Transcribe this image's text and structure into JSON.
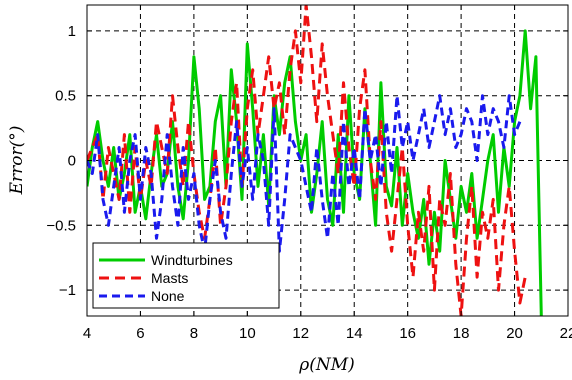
{
  "chart_data": {
    "type": "line",
    "title": "",
    "xlabel": "ρ(NM)",
    "ylabel": "Error(°)",
    "xlim": [
      4,
      22
    ],
    "ylim": [
      -1.2,
      1.2
    ],
    "xticks": [
      "4",
      "6",
      "8",
      "10",
      "12",
      "14",
      "16",
      "18",
      "20",
      "22"
    ],
    "yticks": [
      "1",
      "0.5",
      "0",
      "−0.5",
      "−1"
    ],
    "grid": true,
    "legend_position": "bottom-left",
    "series": [
      {
        "name": "Windturbines",
        "color": "#00cc00",
        "dash": "solid",
        "x": [
          4.0,
          4.2,
          4.4,
          4.6,
          4.8,
          5.0,
          5.2,
          5.4,
          5.6,
          5.8,
          6.0,
          6.2,
          6.4,
          6.6,
          6.8,
          7.0,
          7.2,
          7.4,
          7.6,
          7.8,
          8.0,
          8.2,
          8.4,
          8.6,
          8.8,
          9.0,
          9.2,
          9.4,
          9.6,
          9.8,
          10.0,
          10.2,
          10.4,
          10.6,
          10.8,
          11.0,
          11.2,
          11.4,
          11.6,
          11.8,
          12.0,
          12.2,
          12.4,
          12.6,
          12.8,
          13.0,
          13.2,
          13.4,
          13.6,
          13.8,
          14.0,
          14.2,
          14.4,
          14.6,
          14.8,
          15.0,
          15.2,
          15.4,
          15.6,
          15.8,
          16.0,
          16.2,
          16.4,
          16.6,
          16.8,
          17.0,
          17.2,
          17.4,
          17.6,
          17.8,
          18.0,
          18.2,
          18.4,
          18.6,
          18.8,
          19.0,
          19.2,
          19.4,
          19.6,
          19.8,
          20.0,
          20.2,
          20.4,
          20.6,
          20.8,
          21.0
        ],
        "y": [
          -0.2,
          0.1,
          0.3,
          0.0,
          -0.2,
          0.1,
          -0.3,
          -0.1,
          0.2,
          -0.4,
          -0.2,
          -0.45,
          -0.1,
          0.2,
          -0.2,
          -0.1,
          0.3,
          -0.2,
          -0.45,
          0.0,
          0.8,
          0.4,
          -0.3,
          -0.2,
          0.3,
          0.5,
          -0.2,
          0.7,
          0.3,
          -0.3,
          0.9,
          0.4,
          -0.2,
          0.2,
          -0.35,
          0.5,
          0.2,
          0.6,
          0.8,
          0.3,
          0.0,
          0.2,
          -0.4,
          -0.1,
          0.3,
          -0.3,
          -0.5,
          0.2,
          -0.4,
          0.5,
          -0.1,
          -0.3,
          0.4,
          0.0,
          -0.5,
          0.6,
          -0.2,
          -0.35,
          0.1,
          -0.5,
          -0.1,
          -0.4,
          -0.6,
          -0.3,
          -0.8,
          -0.4,
          -0.7,
          0.0,
          -0.3,
          -0.6,
          -0.2,
          -0.4,
          -0.1,
          -0.6,
          -0.3,
          0.0,
          0.2,
          -0.4,
          0.1,
          -0.2,
          0.3,
          0.5,
          1.0,
          0.4,
          0.8,
          -1.2
        ]
      },
      {
        "name": "Masts",
        "color": "#ee1111",
        "dash": "10,6",
        "x": [
          4.0,
          4.2,
          4.4,
          4.6,
          4.8,
          5.0,
          5.2,
          5.4,
          5.6,
          5.8,
          6.0,
          6.2,
          6.4,
          6.6,
          6.8,
          7.0,
          7.2,
          7.4,
          7.6,
          7.8,
          8.0,
          8.2,
          8.4,
          8.6,
          8.8,
          9.0,
          9.2,
          9.4,
          9.6,
          9.8,
          10.0,
          10.2,
          10.4,
          10.6,
          10.8,
          11.0,
          11.2,
          11.4,
          11.6,
          11.8,
          12.0,
          12.2,
          12.4,
          12.6,
          12.8,
          13.0,
          13.2,
          13.4,
          13.6,
          13.8,
          14.0,
          14.2,
          14.4,
          14.6,
          14.8,
          15.0,
          15.2,
          15.4,
          15.6,
          15.8,
          16.0,
          16.2,
          16.4,
          16.6,
          16.8,
          17.0,
          17.2,
          17.4,
          17.6,
          17.8,
          18.0,
          18.2,
          18.4,
          18.6,
          18.8,
          19.0,
          19.2,
          19.4,
          19.6,
          19.8,
          20.0,
          20.2,
          20.4
        ],
        "y": [
          0.0,
          0.1,
          0.2,
          -0.3,
          0.1,
          -0.1,
          -0.3,
          0.2,
          -0.4,
          0.1,
          -0.3,
          0.0,
          -0.2,
          0.3,
          0.1,
          -0.1,
          0.5,
          0.1,
          -0.2,
          0.3,
          -0.1,
          -0.4,
          -0.6,
          -0.3,
          0.1,
          -0.5,
          -0.2,
          0.3,
          0.6,
          -0.2,
          0.4,
          0.7,
          0.2,
          0.5,
          0.8,
          0.4,
          0.6,
          0.2,
          0.7,
          1.0,
          0.6,
          1.2,
          0.8,
          0.3,
          0.9,
          0.5,
          0.2,
          -0.1,
          0.6,
          0.1,
          -0.2,
          0.4,
          0.7,
          0.0,
          -0.3,
          0.3,
          -0.4,
          -0.7,
          -0.3,
          0.1,
          -0.5,
          -0.9,
          -0.4,
          -0.7,
          -0.2,
          -1.0,
          -0.3,
          -0.5,
          -0.1,
          -0.8,
          -1.2,
          -0.6,
          -0.2,
          -0.9,
          -0.4,
          -0.6,
          -0.3,
          -1.0,
          -0.5,
          -0.2,
          -0.7,
          -1.1,
          -0.9
        ]
      },
      {
        "name": "None",
        "color": "#1a1aee",
        "dash": "8,5",
        "x": [
          4.0,
          4.2,
          4.4,
          4.6,
          4.8,
          5.0,
          5.2,
          5.4,
          5.6,
          5.8,
          6.0,
          6.2,
          6.4,
          6.6,
          6.8,
          7.0,
          7.2,
          7.4,
          7.6,
          7.8,
          8.0,
          8.2,
          8.4,
          8.6,
          8.8,
          9.0,
          9.2,
          9.4,
          9.6,
          9.8,
          10.0,
          10.2,
          10.4,
          10.6,
          10.8,
          11.0,
          11.2,
          11.4,
          11.6,
          11.8,
          12.0,
          12.2,
          12.4,
          12.6,
          12.8,
          13.0,
          13.2,
          13.4,
          13.6,
          13.8,
          14.0,
          14.2,
          14.4,
          14.6,
          14.8,
          15.0,
          15.2,
          15.4,
          15.6,
          15.8,
          16.0,
          16.2,
          16.4,
          16.6,
          16.8,
          17.0,
          17.2,
          17.4,
          17.6,
          17.8,
          18.0,
          18.2,
          18.4,
          18.6,
          18.8,
          19.0,
          19.2,
          19.4,
          19.6,
          19.8,
          20.0,
          20.2
        ],
        "y": [
          0.0,
          -0.1,
          0.2,
          -0.3,
          -0.5,
          -0.2,
          0.1,
          -0.4,
          0.0,
          0.2,
          -0.3,
          0.1,
          -0.1,
          -0.6,
          -0.3,
          0.2,
          -0.2,
          -0.5,
          0.1,
          -0.3,
          -0.1,
          -0.5,
          -0.7,
          -0.3,
          0.0,
          -0.4,
          -0.6,
          -0.1,
          0.3,
          -0.2,
          0.1,
          -0.3,
          0.2,
          0.0,
          -0.5,
          0.4,
          -0.7,
          -0.3,
          0.2,
          0.1,
          0.0,
          -0.2,
          -0.4,
          0.1,
          -0.3,
          -0.6,
          -0.1,
          -0.5,
          0.3,
          -0.2,
          0.1,
          -0.3,
          0.4,
          0.0,
          0.2,
          -0.2,
          0.3,
          -0.1,
          0.5,
          0.1,
          0.3,
          0.0,
          0.2,
          0.4,
          0.1,
          0.3,
          0.5,
          0.2,
          0.4,
          0.1,
          0.2,
          0.4,
          0.3,
          0.0,
          0.5,
          0.2,
          0.4,
          0.3,
          0.1,
          0.5,
          0.2,
          0.3
        ]
      }
    ]
  }
}
